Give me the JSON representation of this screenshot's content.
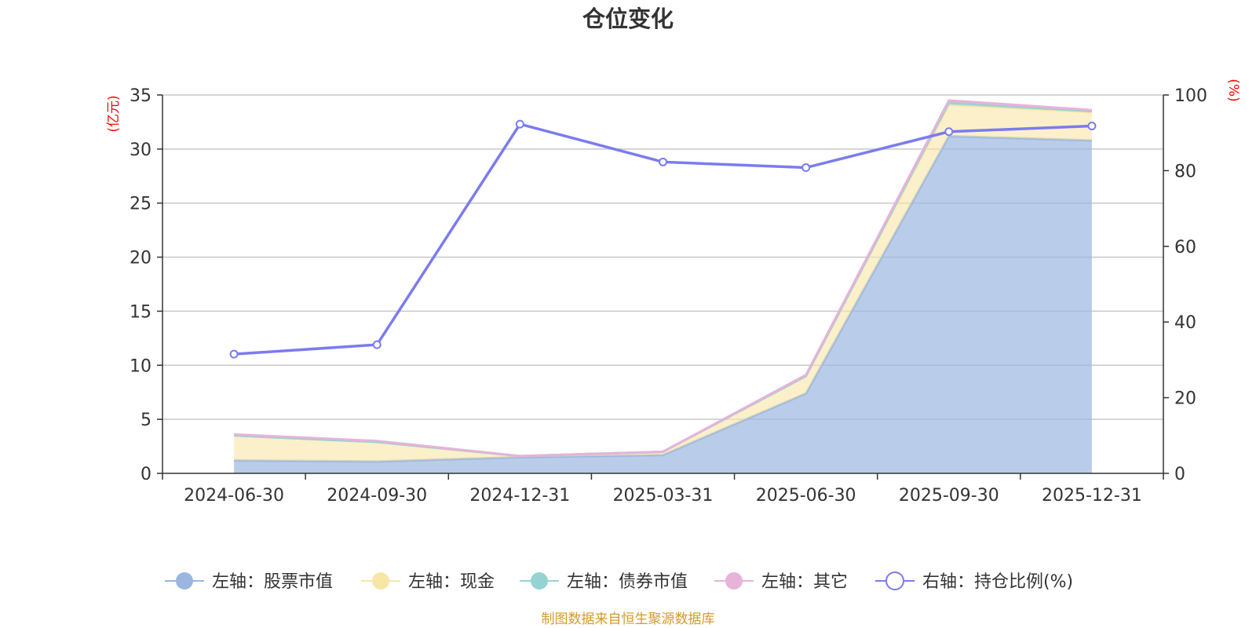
{
  "chart_data": {
    "type": "area",
    "title": "仓位变化",
    "left_axis_unit": "(亿元)",
    "right_axis_unit": "(%)",
    "categories": [
      "2024-06-30",
      "2024-09-30",
      "2024-12-31",
      "2025-03-31",
      "2025-06-30",
      "2025-09-30",
      "2025-12-31"
    ],
    "left_ylim": [
      0,
      35
    ],
    "left_ticks": [
      0,
      5,
      10,
      15,
      20,
      25,
      30,
      35
    ],
    "right_ylim": [
      0,
      100
    ],
    "right_ticks": [
      0,
      20,
      40,
      60,
      80,
      100
    ],
    "stacked_series": [
      {
        "name": "左轴：股票市值",
        "axis": "left",
        "color": "#9bb7e0",
        "values": [
          1.2,
          1.1,
          1.5,
          1.7,
          7.4,
          31.2,
          30.8
        ]
      },
      {
        "name": "左轴：现金",
        "axis": "left",
        "color": "#f8e6a6",
        "values": [
          2.3,
          1.8,
          0.1,
          0.3,
          1.6,
          2.9,
          2.6
        ]
      },
      {
        "name": "左轴：债券市值",
        "axis": "left",
        "color": "#95d3d3",
        "values": [
          0.0,
          0.0,
          0.0,
          0.0,
          0.0,
          0.2,
          0.1
        ]
      },
      {
        "name": "左轴：其它",
        "axis": "left",
        "color": "#e6b3d9",
        "values": [
          0.1,
          0.1,
          0.0,
          0.0,
          0.1,
          0.2,
          0.1
        ]
      }
    ],
    "line_series": {
      "name": "右轴：持仓比例(%)",
      "axis": "right",
      "color": "#7b7bef",
      "values": [
        31.5,
        34.0,
        92.3,
        82.3,
        80.8,
        90.3,
        91.8
      ]
    },
    "legend_position": "bottom",
    "grid": true
  },
  "source_note": "制图数据来自恒生聚源数据库"
}
